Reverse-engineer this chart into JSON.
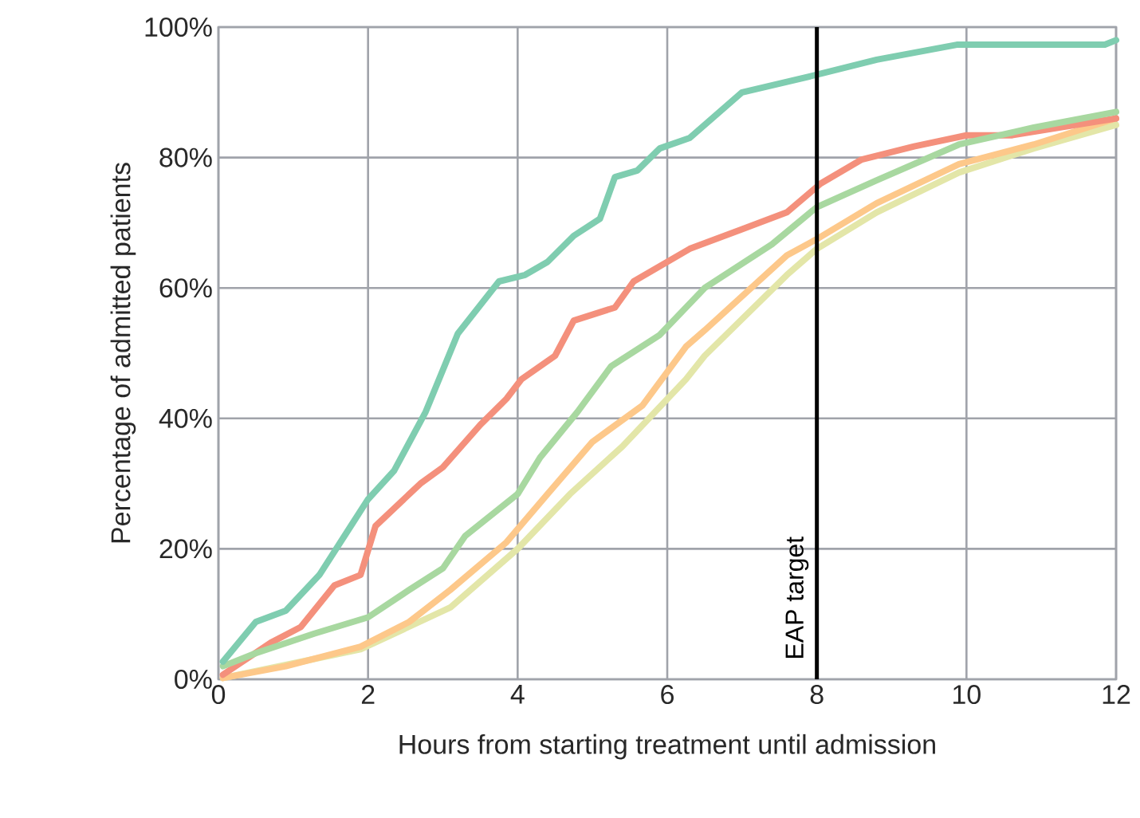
{
  "chart_data": {
    "type": "line",
    "xlabel": "Hours from starting treatment until admission",
    "ylabel": "Percentage of admitted patients",
    "xlim": [
      0,
      12
    ],
    "xticks": [
      0,
      2,
      4,
      6,
      8,
      10,
      12
    ],
    "ylim": [
      0,
      100
    ],
    "yticks": [
      {
        "value": 0,
        "label": "0%"
      },
      {
        "value": 20,
        "label": "20%"
      },
      {
        "value": 40,
        "label": "40%"
      },
      {
        "value": 60,
        "label": "60%"
      },
      {
        "value": 80,
        "label": "80%"
      },
      {
        "value": 100,
        "label": "100%"
      }
    ],
    "grid": true,
    "legend": false,
    "line_style": "solid",
    "marker": "none",
    "ref_lines": [
      {
        "axis": "x",
        "value": 8,
        "label": "EAP target",
        "color": "#000000",
        "line_style": "solid"
      }
    ],
    "series": [
      {
        "color": "#e3e6a8",
        "x": [
          0.06,
          0.9,
          1.9,
          3.1,
          4.0,
          4.7,
          5.4,
          6.25,
          6.5,
          7.6,
          8.0,
          8.8,
          9.9,
          10.9,
          12
        ],
        "values": [
          0.2,
          2.2,
          4.6,
          11,
          20,
          28.4,
          35.7,
          46,
          49.6,
          62,
          66,
          71.6,
          77.7,
          81.4,
          85
        ]
      },
      {
        "color": "#fdc88a",
        "x": [
          0.06,
          0.9,
          1.9,
          2.55,
          3.1,
          3.85,
          4.4,
          5.0,
          5.67,
          6.25,
          6.5,
          7.6,
          8.0,
          8.8,
          9.9,
          10.9,
          12
        ],
        "values": [
          0.2,
          2,
          5,
          8.8,
          13.7,
          21,
          28.4,
          36.4,
          42,
          51,
          53.5,
          65,
          67.5,
          73,
          79,
          82,
          86
        ]
      },
      {
        "color": "#f4907c",
        "x": [
          0.06,
          0.7,
          1.1,
          1.55,
          1.9,
          2.1,
          2.7,
          3.0,
          3.5,
          3.85,
          4.05,
          4.5,
          4.75,
          5.3,
          5.55,
          6.3,
          7.0,
          7.6,
          8.05,
          8.6,
          9.3,
          10.0,
          10.6,
          12
        ],
        "values": [
          0.7,
          5.6,
          8,
          14.4,
          16,
          23.5,
          30,
          32.5,
          39,
          43,
          46,
          49.6,
          55,
          57,
          61,
          66,
          69,
          71.6,
          76,
          79.7,
          81.7,
          83.4,
          83.4,
          86
        ]
      },
      {
        "color": "#a8d8a0",
        "x": [
          0.06,
          0.5,
          1.28,
          2.0,
          2.55,
          3.0,
          3.3,
          4.0,
          4.3,
          4.8,
          5.25,
          5.9,
          6.5,
          7.4,
          8.0,
          8.8,
          9.9,
          10.9,
          12
        ],
        "values": [
          2,
          4,
          7,
          9.5,
          13.7,
          17,
          22,
          28.4,
          34,
          41,
          48,
          52.8,
          60,
          66.7,
          72.4,
          76.5,
          82,
          84.6,
          87
        ]
      },
      {
        "color": "#7fcdb0",
        "x": [
          0.06,
          0.5,
          0.9,
          1.35,
          1.77,
          2.0,
          2.35,
          2.77,
          3.2,
          3.75,
          4.1,
          4.4,
          4.75,
          5.1,
          5.3,
          5.6,
          5.9,
          6.3,
          7.0,
          8.0,
          8.8,
          9.87,
          11.85,
          12
        ],
        "values": [
          2.7,
          8.8,
          10.5,
          16,
          23.5,
          27.6,
          32,
          41,
          53,
          61,
          62,
          64,
          68,
          70.6,
          77,
          78,
          81.4,
          83,
          90,
          92.7,
          95,
          97.3,
          97.3,
          98
        ]
      }
    ]
  }
}
